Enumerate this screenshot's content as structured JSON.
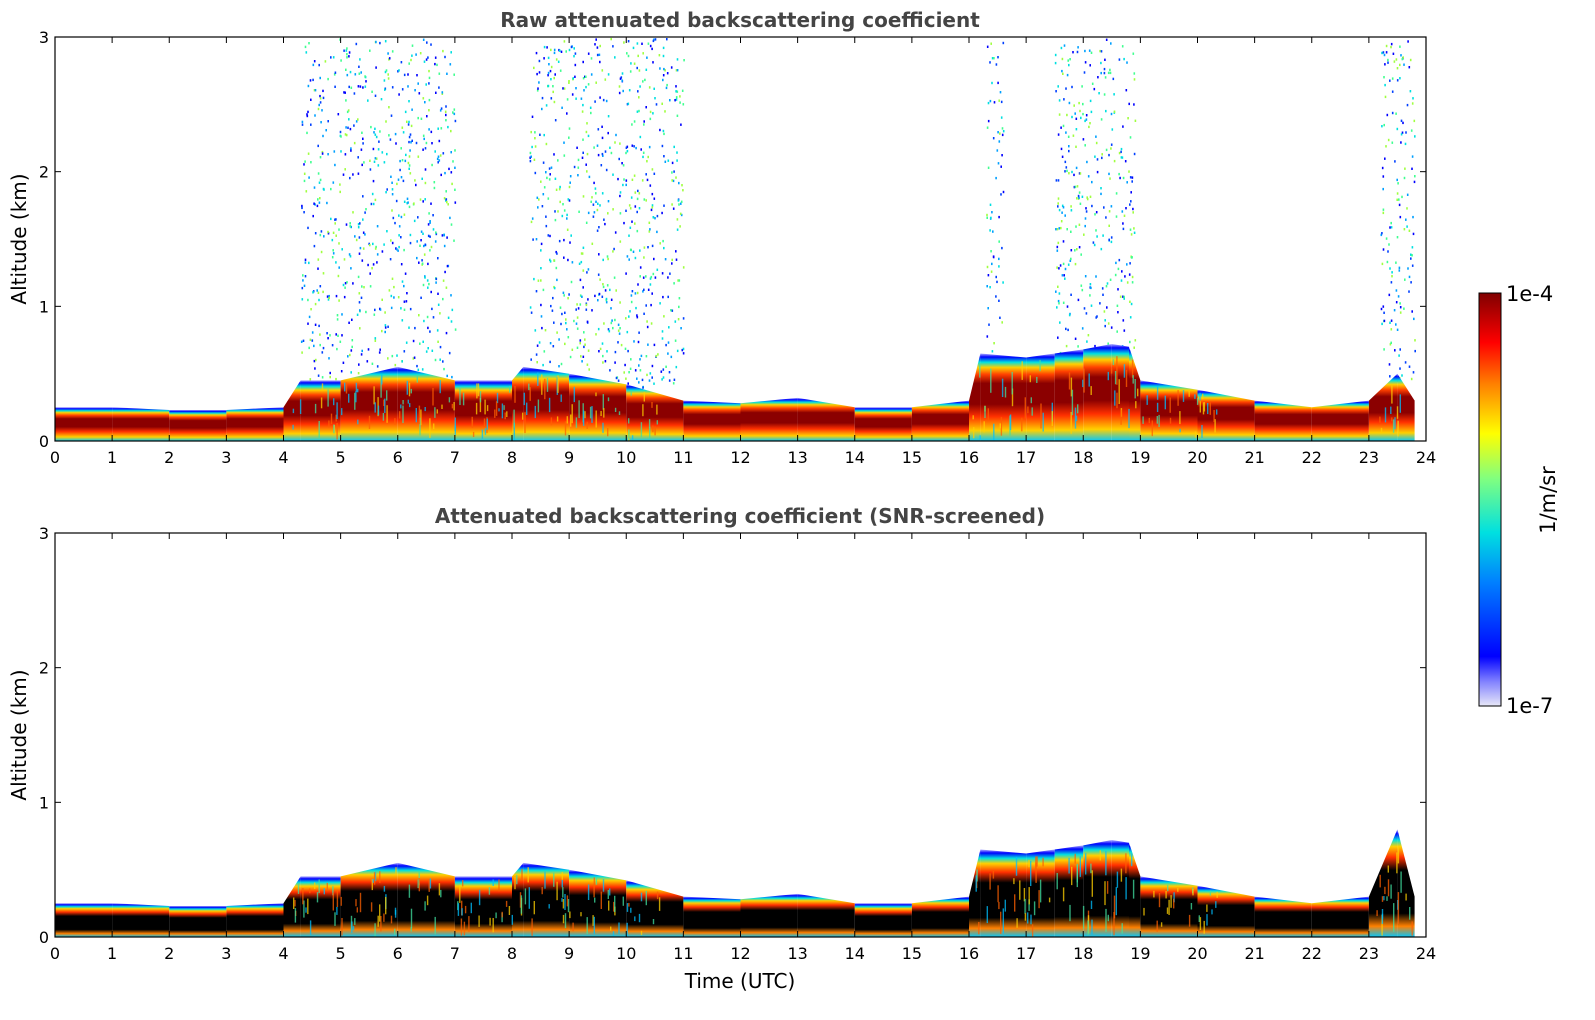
{
  "chart_data": [
    {
      "type": "heatmap",
      "title": "Raw attenuated backscattering coefficient",
      "ylabel": "Altitude (km)",
      "xlabel": "",
      "xlim": [
        0,
        24
      ],
      "ylim": [
        0,
        3
      ],
      "x_ticks": [
        "0",
        "1",
        "2",
        "3",
        "4",
        "5",
        "6",
        "7",
        "8",
        "9",
        "10",
        "11",
        "12",
        "13",
        "14",
        "15",
        "16",
        "17",
        "18",
        "19",
        "20",
        "21",
        "22",
        "23",
        "24"
      ],
      "y_ticks": [
        "0",
        "1",
        "2",
        "3"
      ],
      "layer_top_km": {
        "x": [
          0,
          1,
          2,
          3,
          4,
          4.3,
          5,
          6,
          7,
          8,
          8.2,
          9,
          10,
          11,
          12,
          13,
          14,
          15,
          16,
          16.2,
          17,
          17.5,
          18,
          18.5,
          18.8,
          19,
          20,
          21,
          22,
          23,
          23.5,
          23.8
        ],
        "y": [
          0.25,
          0.25,
          0.23,
          0.23,
          0.25,
          0.45,
          0.45,
          0.55,
          0.45,
          0.45,
          0.55,
          0.5,
          0.42,
          0.3,
          0.28,
          0.32,
          0.25,
          0.25,
          0.3,
          0.65,
          0.62,
          0.65,
          0.68,
          0.72,
          0.7,
          0.45,
          0.38,
          0.3,
          0.25,
          0.3,
          0.5,
          0.3
        ]
      },
      "noise_intervals_utc": [
        [
          4.3,
          7.0
        ],
        [
          8.3,
          11.0
        ],
        [
          16.3,
          16.6
        ],
        [
          17.5,
          18.9
        ],
        [
          23.2,
          23.8
        ]
      ],
      "colorbar": {
        "min": "1e-7",
        "max": "1e-4",
        "unit": "1/m/sr",
        "scale": "log",
        "colormap": "jet"
      }
    },
    {
      "type": "heatmap",
      "title": "Attenuated backscattering coefficient (SNR-screened)",
      "ylabel": "Altitude (km)",
      "xlabel": "Time (UTC)",
      "xlim": [
        0,
        24
      ],
      "ylim": [
        0,
        3
      ],
      "x_ticks": [
        "0",
        "1",
        "2",
        "3",
        "4",
        "5",
        "6",
        "7",
        "8",
        "9",
        "10",
        "11",
        "12",
        "13",
        "14",
        "15",
        "16",
        "17",
        "18",
        "19",
        "20",
        "21",
        "22",
        "23",
        "24"
      ],
      "y_ticks": [
        "0",
        "1",
        "2",
        "3"
      ],
      "layer_top_km": {
        "x": [
          0,
          1,
          2,
          3,
          4,
          4.3,
          5,
          6,
          7,
          8,
          8.2,
          9,
          10,
          11,
          12,
          13,
          14,
          15,
          16,
          16.2,
          17,
          17.5,
          18,
          18.5,
          18.8,
          19,
          20,
          21,
          22,
          23,
          23.5,
          23.8
        ],
        "y": [
          0.25,
          0.25,
          0.23,
          0.23,
          0.25,
          0.45,
          0.45,
          0.55,
          0.45,
          0.45,
          0.55,
          0.5,
          0.42,
          0.3,
          0.28,
          0.32,
          0.25,
          0.25,
          0.3,
          0.65,
          0.62,
          0.65,
          0.68,
          0.72,
          0.7,
          0.45,
          0.38,
          0.3,
          0.25,
          0.3,
          0.8,
          0.3
        ]
      },
      "colorbar": {
        "min": "1e-7",
        "max": "1e-4",
        "unit": "1/m/sr",
        "scale": "log",
        "colormap": "jet"
      }
    }
  ]
}
